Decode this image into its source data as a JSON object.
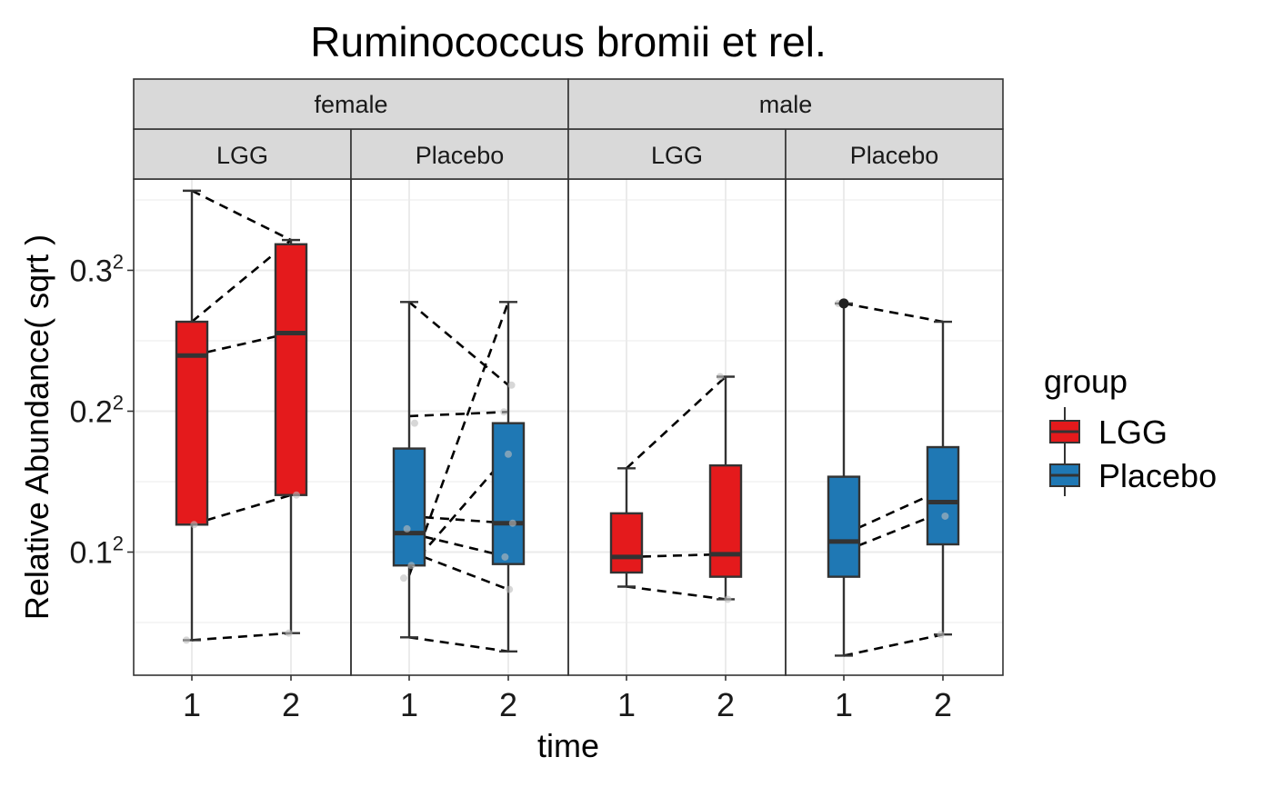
{
  "chart_data": {
    "type": "boxplot",
    "title": "Ruminococcus bromii et rel.",
    "xlabel": "time",
    "ylabel": "Relative Abundance( sqrt )",
    "y_scale": "sqrt",
    "y_ticks": [
      {
        "base": "0.1",
        "exp": "2",
        "value": 0.01
      },
      {
        "base": "0.2",
        "exp": "2",
        "value": 0.04
      },
      {
        "base": "0.3",
        "exp": "2",
        "value": 0.09
      }
    ],
    "ylim_sqrt": [
      0.0126,
      0.3648
    ],
    "x_ticks": [
      "1",
      "2"
    ],
    "facet_rows": [
      "female",
      "male"
    ],
    "legend": {
      "title": "group",
      "position": "right",
      "entries": [
        {
          "label": "LGG",
          "color": "#E41A1C"
        },
        {
          "label": "Placebo",
          "color": "#1F78B4"
        }
      ]
    },
    "panels": [
      {
        "sex": "female",
        "group": "LGG",
        "color": "#E41A1C",
        "boxes": [
          {
            "time": "1",
            "min": 0.0375,
            "q1": 0.1195,
            "median": 0.2395,
            "q3": 0.2635,
            "max": 0.3565
          },
          {
            "time": "2",
            "min": 0.0425,
            "q1": 0.1405,
            "median": 0.2555,
            "q3": 0.3185,
            "max": 0.3215
          }
        ],
        "points": [
          {
            "time": "1",
            "sqrt_value": 0.0375
          },
          {
            "time": "1",
            "sqrt_value": 0.1195
          },
          {
            "time": "2",
            "sqrt_value": 0.0425
          },
          {
            "time": "2",
            "sqrt_value": 0.1405
          }
        ],
        "pairs": [
          [
            0.3565,
            0.3215
          ],
          [
            0.2635,
            0.3215
          ],
          [
            0.2395,
            0.2555
          ],
          [
            0.1195,
            0.1405
          ],
          [
            0.0375,
            0.0425
          ]
        ]
      },
      {
        "sex": "female",
        "group": "Placebo",
        "color": "#1F78B4",
        "boxes": [
          {
            "time": "1",
            "min": 0.0395,
            "q1": 0.0905,
            "median": 0.1135,
            "q3": 0.1735,
            "max": 0.2775
          },
          {
            "time": "2",
            "min": 0.0295,
            "q1": 0.0915,
            "median": 0.1205,
            "q3": 0.1915,
            "max": 0.2775
          }
        ],
        "points": [
          {
            "time": "1",
            "sqrt_value": 0.0815
          },
          {
            "time": "1",
            "sqrt_value": 0.0905
          },
          {
            "time": "1",
            "sqrt_value": 0.1165
          },
          {
            "time": "1",
            "sqrt_value": 0.1915
          },
          {
            "time": "2",
            "sqrt_value": 0.0735
          },
          {
            "time": "2",
            "sqrt_value": 0.0965
          },
          {
            "time": "2",
            "sqrt_value": 0.1205
          },
          {
            "time": "2",
            "sqrt_value": 0.1695
          },
          {
            "time": "2",
            "sqrt_value": 0.1995
          },
          {
            "time": "2",
            "sqrt_value": 0.2185
          }
        ],
        "pairs": [
          [
            0.2775,
            0.2185
          ],
          [
            0.1965,
            0.1995
          ],
          [
            0.0835,
            0.2775
          ],
          [
            0.0885,
            0.1695
          ],
          [
            0.1255,
            0.1205
          ],
          [
            0.1135,
            0.0965
          ],
          [
            0.1005,
            0.0735
          ],
          [
            0.0395,
            0.0295
          ]
        ]
      },
      {
        "sex": "male",
        "group": "LGG",
        "color": "#E41A1C",
        "boxes": [
          {
            "time": "1",
            "min": 0.0755,
            "q1": 0.0855,
            "median": 0.0965,
            "q3": 0.1275,
            "max": 0.1595
          },
          {
            "time": "2",
            "min": 0.0665,
            "q1": 0.0825,
            "median": 0.0985,
            "q3": 0.1615,
            "max": 0.2245
          }
        ],
        "points": [
          {
            "time": "2",
            "sqrt_value": 0.2245
          },
          {
            "time": "2",
            "sqrt_value": 0.0665
          }
        ],
        "pairs": [
          [
            0.1595,
            0.2245
          ],
          [
            0.0965,
            0.0985
          ],
          [
            0.0755,
            0.0665
          ]
        ]
      },
      {
        "sex": "male",
        "group": "Placebo",
        "color": "#1F78B4",
        "boxes": [
          {
            "time": "1",
            "min": 0.0265,
            "q1": 0.0825,
            "median": 0.1075,
            "q3": 0.1535,
            "max": 0.2765
          },
          {
            "time": "2",
            "min": 0.0415,
            "q1": 0.1055,
            "median": 0.1355,
            "q3": 0.1745,
            "max": 0.2635
          }
        ],
        "points": [
          {
            "time": "1",
            "sqrt_value": 0.2765
          },
          {
            "time": "2",
            "sqrt_value": 0.1255
          },
          {
            "time": "2",
            "sqrt_value": 0.0415
          }
        ],
        "outliers": [
          {
            "time": "1",
            "sqrt_value": 0.2765
          }
        ],
        "pairs": [
          [
            0.2765,
            0.2635
          ],
          [
            0.1125,
            0.1445
          ],
          [
            0.1005,
            0.1285
          ],
          [
            0.0265,
            0.0415
          ]
        ]
      }
    ]
  }
}
